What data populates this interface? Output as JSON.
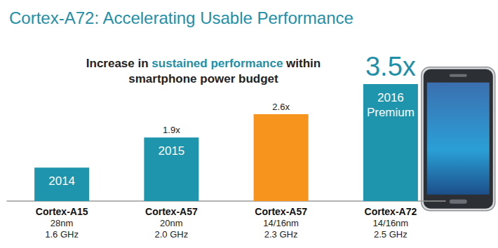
{
  "chart_data": {
    "type": "bar",
    "title": "Cortex-A72: Accelerating Usable Performance",
    "subtitle": "Increase in sustained performance within\nsmartphone power budget",
    "subtitle_highlight": "sustained performance",
    "categories": [
      "Cortex-A15",
      "Cortex-A57",
      "Cortex-A57",
      "Cortex-A72"
    ],
    "process": [
      "28nm",
      "20nm",
      "14/16nm",
      "14/16nm"
    ],
    "frequency": [
      "1.6 GHz",
      "2.0 GHz",
      "2.3 GHz",
      "2.5 GHz"
    ],
    "values": [
      1,
      1.9,
      2.6,
      3.5
    ],
    "value_labels": [
      null,
      "1.9x",
      "2.6x",
      "3.5x"
    ],
    "bar_annotations": [
      "2014",
      "2015",
      null,
      "2016\nPremium"
    ],
    "colors": [
      "#1f95ad",
      "#1f95ad",
      "#f7941d",
      "#1f95ad"
    ],
    "ylim": [
      0,
      3.5
    ],
    "data_labels": true,
    "tick_labels": "x",
    "grid": false
  }
}
